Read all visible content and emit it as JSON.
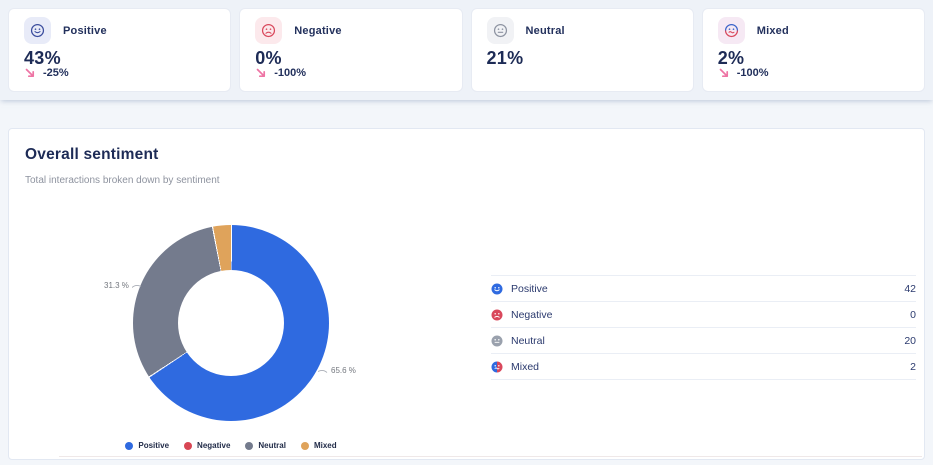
{
  "kpi_cards": [
    {
      "label": "Positive",
      "value": "43%",
      "change": "-25%",
      "trend": "down"
    },
    {
      "label": "Negative",
      "value": "0%",
      "change": "-100%",
      "trend": "down"
    },
    {
      "label": "Neutral",
      "value": "21%",
      "change": "",
      "trend": ""
    },
    {
      "label": "Mixed",
      "value": "2%",
      "change": "-100%",
      "trend": "down"
    }
  ],
  "panel": {
    "title": "Overall sentiment",
    "subtitle": "Total interactions broken down by sentiment"
  },
  "chart_data": {
    "type": "pie",
    "donut": true,
    "title": "Overall sentiment",
    "subtitle": "Total interactions broken down by sentiment",
    "categories": [
      "Positive",
      "Negative",
      "Neutral",
      "Mixed"
    ],
    "values": [
      42,
      0,
      20,
      2
    ],
    "percentages": [
      65.6,
      0,
      31.3,
      3.1
    ],
    "percent_labels": {
      "Positive": "65.6 %",
      "Neutral": "31.3 %"
    },
    "colors": {
      "Positive": "#2f6ae0",
      "Negative": "#d84654",
      "Neutral": "#747b8d",
      "Mixed": "#dfa35b"
    },
    "table_icon_colors": {
      "Positive": "#2f6ae0",
      "Negative": "#d9485c",
      "Neutral": "#9aa1ad",
      "Mixed_left": "#2f6ae0",
      "Mixed_right": "#d9485c"
    },
    "legend_position": "bottom",
    "legend": [
      "Positive",
      "Negative",
      "Neutral",
      "Mixed"
    ]
  },
  "table": {
    "rows": [
      {
        "label": "Positive",
        "value": "42"
      },
      {
        "label": "Negative",
        "value": "0"
      },
      {
        "label": "Neutral",
        "value": "20"
      },
      {
        "label": "Mixed",
        "value": "2"
      }
    ]
  },
  "colors": {
    "text_navy": "#22305c",
    "value_navy": "#1d2b56",
    "subtitle_gray": "#8e939f",
    "change_arrow_pink": "#ee74a4",
    "panel_bg": "#ffffff",
    "page_bg": "#f3f6fa"
  }
}
